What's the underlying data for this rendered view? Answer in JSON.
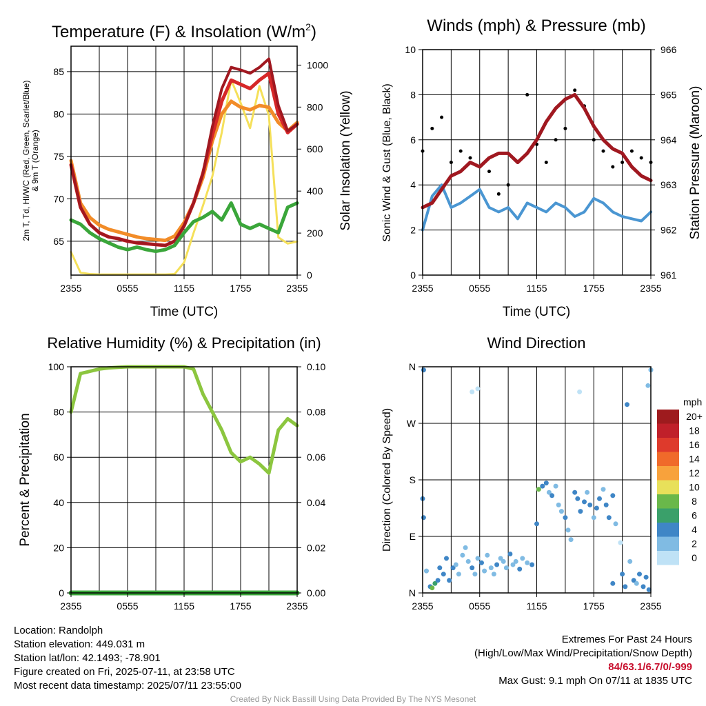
{
  "chart_data": [
    {
      "type": "line",
      "title": "Temperature (F) & Insolation (W/m2)",
      "title_main": "Temperature (F) & Insolation (W/m",
      "title_sup": "2",
      "title_end": ")",
      "xlabel": "Time (UTC)",
      "ylabel_line1": "2m T, Td, HI/WC (Red, Green, Scarlet/Blue)",
      "ylabel_line2": "& 9m T (Orange)",
      "y2label": "Solar Insolation (Yellow)",
      "xticks": [
        "2355",
        "0555",
        "1155",
        "1755",
        "2355"
      ],
      "ylim": [
        61,
        88
      ],
      "yticks": [
        65,
        70,
        75,
        80,
        85
      ],
      "y2lim": [
        0,
        1090
      ],
      "y2ticks": [
        0,
        200,
        400,
        600,
        800,
        1000
      ],
      "x_hours": [
        0,
        1,
        2,
        3,
        4,
        5,
        6,
        7,
        8,
        9,
        10,
        11,
        12,
        13,
        14,
        15,
        16,
        17,
        18,
        19,
        20,
        21,
        22,
        23,
        24
      ],
      "series": [
        {
          "key": "solar",
          "color": "#f5e05a",
          "axis": "right",
          "values": [
            110,
            12,
            5,
            3,
            3,
            3,
            3,
            3,
            3,
            3,
            3,
            5,
            60,
            200,
            330,
            470,
            680,
            930,
            820,
            700,
            900,
            760,
            180,
            150,
            160
          ]
        },
        {
          "key": "temp9m",
          "color": "#f28c28",
          "axis": "left",
          "values": [
            74.5,
            69.5,
            67.8,
            66.9,
            66.4,
            66.1,
            65.8,
            65.5,
            65.3,
            65.2,
            65.1,
            65.6,
            67.2,
            69.5,
            72.5,
            76.8,
            80.0,
            81.5,
            80.8,
            80.5,
            81.0,
            80.8,
            79.0,
            78.0,
            79.0
          ]
        },
        {
          "key": "temp2m",
          "color": "#d62728",
          "axis": "left",
          "values": [
            74.0,
            69.0,
            67.0,
            66.0,
            65.5,
            65.3,
            65.0,
            64.8,
            64.7,
            64.6,
            64.5,
            65.0,
            66.8,
            69.5,
            73.0,
            77.5,
            81.5,
            84.0,
            83.5,
            83.0,
            84.0,
            84.8,
            80.0,
            77.8,
            78.8
          ]
        },
        {
          "key": "heatindex",
          "color": "#a01820",
          "axis": "left",
          "values": [
            74.0,
            69.0,
            67.0,
            66.0,
            65.5,
            65.3,
            65.0,
            64.8,
            64.7,
            64.6,
            64.5,
            65.0,
            66.8,
            69.5,
            73.0,
            78.5,
            83.0,
            85.5,
            85.2,
            84.8,
            85.5,
            86.5,
            81.0,
            78.0,
            78.8
          ]
        },
        {
          "key": "dewpoint",
          "color": "#3aa63a",
          "axis": "left",
          "values": [
            67.5,
            67.0,
            66.0,
            65.3,
            64.8,
            64.3,
            64.0,
            64.3,
            64.0,
            63.8,
            64.0,
            64.5,
            66.0,
            67.3,
            67.8,
            68.5,
            67.5,
            69.5,
            67.0,
            66.5,
            67.0,
            66.5,
            66.0,
            69.0,
            69.5
          ]
        }
      ]
    },
    {
      "type": "line",
      "title": "Winds (mph) & Pressure (mb)",
      "xlabel": "Time (UTC)",
      "ylabel": "Sonic Wind & Gust (Blue, Black)",
      "y2label": "Station Pressure (Maroon)",
      "xticks": [
        "2355",
        "0555",
        "1155",
        "1755",
        "2355"
      ],
      "ylim": [
        0,
        10
      ],
      "yticks": [
        0,
        2,
        4,
        6,
        8,
        10
      ],
      "y2lim": [
        961,
        966
      ],
      "y2ticks": [
        961,
        962,
        963,
        964,
        965,
        966
      ],
      "x_hours": [
        0,
        1,
        2,
        3,
        4,
        5,
        6,
        7,
        8,
        9,
        10,
        11,
        12,
        13,
        14,
        15,
        16,
        17,
        18,
        19,
        20,
        21,
        22,
        23,
        24
      ],
      "series": [
        {
          "key": "wind",
          "color": "#4a96d2",
          "axis": "left",
          "values": [
            2.0,
            3.5,
            4.0,
            3.0,
            3.2,
            3.5,
            3.8,
            3.0,
            2.8,
            3.0,
            2.5,
            3.2,
            3.0,
            2.8,
            3.2,
            3.0,
            2.6,
            2.8,
            3.4,
            3.2,
            2.8,
            2.6,
            2.5,
            2.4,
            2.8
          ]
        },
        {
          "key": "gust",
          "color": "#000000",
          "axis": "left",
          "values": [
            5.5,
            6.5,
            7.0,
            5.0,
            5.5,
            5.2,
            4.8,
            4.6,
            3.6,
            4.0,
            5.0,
            8.0,
            5.8,
            5.0,
            6.0,
            6.5,
            8.2,
            7.5,
            6.0,
            5.5,
            4.8,
            5.0,
            5.5,
            5.2,
            5.0
          ]
        },
        {
          "key": "pressure",
          "color": "#a01820",
          "axis": "right",
          "values": [
            962.5,
            962.6,
            962.9,
            963.2,
            963.3,
            963.5,
            963.4,
            963.6,
            963.7,
            963.7,
            963.5,
            963.7,
            964.0,
            964.4,
            964.7,
            964.9,
            965.0,
            964.7,
            964.3,
            964.0,
            963.8,
            963.7,
            963.4,
            963.2,
            963.1
          ]
        }
      ]
    },
    {
      "type": "line",
      "title": "Relative Humidity (%) & Precipitation (in)",
      "ylabel": "Percent & Precipitation",
      "xticks": [
        "2355",
        "0555",
        "1155",
        "1755",
        "2355"
      ],
      "ylim": [
        0,
        100
      ],
      "yticks": [
        0,
        20,
        40,
        60,
        80,
        100
      ],
      "y2lim": [
        0,
        0.1
      ],
      "y2ticks": [
        "0.00",
        "0.02",
        "0.04",
        "0.06",
        "0.08",
        "0.10"
      ],
      "x_hours": [
        0,
        1,
        2,
        3,
        4,
        5,
        6,
        7,
        8,
        9,
        10,
        11,
        12,
        13,
        14,
        15,
        16,
        17,
        18,
        19,
        20,
        21,
        22,
        23,
        24
      ],
      "series": [
        {
          "key": "rh",
          "color": "#8cc63f",
          "axis": "left",
          "values": [
            80,
            97,
            98,
            99,
            99.5,
            99.8,
            100,
            100,
            100,
            100,
            100,
            100,
            100,
            99,
            88,
            80,
            72,
            62,
            58,
            60,
            57,
            53,
            72,
            77,
            74
          ]
        },
        {
          "key": "precip",
          "color": "#3aa63a",
          "axis": "right",
          "values": [
            0,
            0,
            0,
            0,
            0,
            0,
            0,
            0,
            0,
            0,
            0,
            0,
            0,
            0,
            0,
            0,
            0,
            0,
            0,
            0,
            0,
            0,
            0,
            0,
            0
          ]
        }
      ]
    },
    {
      "type": "scatter",
      "title": "Wind Direction",
      "ylabel": "Direction (Colored By Speed)",
      "xticks": [
        "2355",
        "0555",
        "1155",
        "1755",
        "2355"
      ],
      "ylim": [
        0,
        360
      ],
      "yticks": [
        "N",
        "E",
        "S",
        "W",
        "N"
      ],
      "legend_unit": "mph",
      "legend": [
        {
          "label": "20+",
          "color": "#9e1b1e"
        },
        {
          "label": "18",
          "color": "#c0202a"
        },
        {
          "label": "16",
          "color": "#de3a2c"
        },
        {
          "label": "14",
          "color": "#f06a2a"
        },
        {
          "label": "12",
          "color": "#f8a23c"
        },
        {
          "label": "10",
          "color": "#e8e05a"
        },
        {
          "label": "8",
          "color": "#6ab84a"
        },
        {
          "label": "6",
          "color": "#3aa06a"
        },
        {
          "label": "4",
          "color": "#3f86c6"
        },
        {
          "label": "2",
          "color": "#80bbe3"
        },
        {
          "label": "0",
          "color": "#bfe2f6"
        }
      ],
      "points": [
        [
          0.1,
          355,
          4
        ],
        [
          0.0,
          150,
          4
        ],
        [
          0.1,
          120,
          4
        ],
        [
          0.4,
          35,
          2
        ],
        [
          0.8,
          10,
          4
        ],
        [
          1.0,
          8,
          7
        ],
        [
          1.3,
          15,
          6
        ],
        [
          1.6,
          20,
          4
        ],
        [
          1.8,
          40,
          4
        ],
        [
          2.2,
          30,
          4
        ],
        [
          2.5,
          55,
          3
        ],
        [
          2.8,
          20,
          3
        ],
        [
          3.2,
          40,
          3
        ],
        [
          3.5,
          45,
          2
        ],
        [
          3.8,
          30,
          2
        ],
        [
          4.2,
          60,
          2
        ],
        [
          4.5,
          72,
          1
        ],
        [
          4.8,
          50,
          2
        ],
        [
          5.2,
          40,
          3
        ],
        [
          5.5,
          30,
          2
        ],
        [
          5.8,
          55,
          2
        ],
        [
          6.2,
          48,
          3
        ],
        [
          6.5,
          35,
          2
        ],
        [
          6.8,
          60,
          2
        ],
        [
          7.2,
          40,
          2
        ],
        [
          7.5,
          30,
          2
        ],
        [
          7.8,
          45,
          3
        ],
        [
          8.2,
          55,
          2
        ],
        [
          8.5,
          50,
          2
        ],
        [
          8.8,
          40,
          2
        ],
        [
          9.2,
          62,
          3
        ],
        [
          9.5,
          45,
          2
        ],
        [
          9.8,
          50,
          2
        ],
        [
          10.2,
          38,
          3
        ],
        [
          10.5,
          55,
          2
        ],
        [
          11.0,
          48,
          2
        ],
        [
          11.5,
          45,
          3
        ],
        [
          12.0,
          110,
          3
        ],
        [
          12.2,
          165,
          7
        ],
        [
          12.6,
          170,
          4
        ],
        [
          13.0,
          175,
          3
        ],
        [
          13.3,
          160,
          2
        ],
        [
          13.6,
          155,
          3
        ],
        [
          14.0,
          170,
          2
        ],
        [
          14.3,
          140,
          2
        ],
        [
          14.6,
          130,
          2
        ],
        [
          15.0,
          120,
          3
        ],
        [
          15.3,
          100,
          2
        ],
        [
          15.6,
          85,
          1
        ],
        [
          16.0,
          160,
          3
        ],
        [
          16.3,
          150,
          3
        ],
        [
          16.6,
          130,
          3
        ],
        [
          17.0,
          145,
          4
        ],
        [
          17.3,
          160,
          2
        ],
        [
          17.6,
          140,
          3
        ],
        [
          18.0,
          120,
          2
        ],
        [
          18.3,
          135,
          3
        ],
        [
          18.6,
          150,
          3
        ],
        [
          19.0,
          165,
          2
        ],
        [
          19.3,
          140,
          3
        ],
        [
          19.6,
          120,
          4
        ],
        [
          20.0,
          155,
          3
        ],
        [
          20.3,
          110,
          2
        ],
        [
          20.8,
          80,
          0
        ],
        [
          21.0,
          30,
          4
        ],
        [
          21.3,
          10,
          3
        ],
        [
          21.5,
          300,
          4
        ],
        [
          21.8,
          50,
          2
        ],
        [
          22.2,
          20,
          3
        ],
        [
          22.5,
          15,
          2
        ],
        [
          22.8,
          30,
          3
        ],
        [
          23.2,
          10,
          3
        ],
        [
          23.5,
          25,
          4
        ],
        [
          23.8,
          5,
          3
        ],
        [
          24.0,
          355,
          2
        ],
        [
          23.7,
          330,
          1
        ],
        [
          5.8,
          325,
          0
        ],
        [
          5.2,
          320,
          0
        ],
        [
          16.5,
          320,
          0
        ],
        [
          20.0,
          15,
          4
        ]
      ]
    }
  ],
  "info": {
    "location": "Location: Randolph",
    "elevation": "Station elevation: 449.031 m",
    "latlon": "Station lat/lon: 42.1493; -78.901",
    "created": "Figure created on Fri, 2025-07-11, at 23:58 UTC",
    "recent": "Most recent data timestamp: 2025/07/11 23:55:00"
  },
  "extremes": {
    "line1": "Extremes For Past 24 Hours",
    "line2": "(High/Low/Max Wind/Precipitation/Snow Depth)",
    "values": "84/63.1/6.7/0/-999",
    "gust": "Max Gust: 9.1 mph On 07/11 at 1835 UTC"
  },
  "credit": "Created By Nick Bassill Using Data Provided By The NYS Mesonet"
}
